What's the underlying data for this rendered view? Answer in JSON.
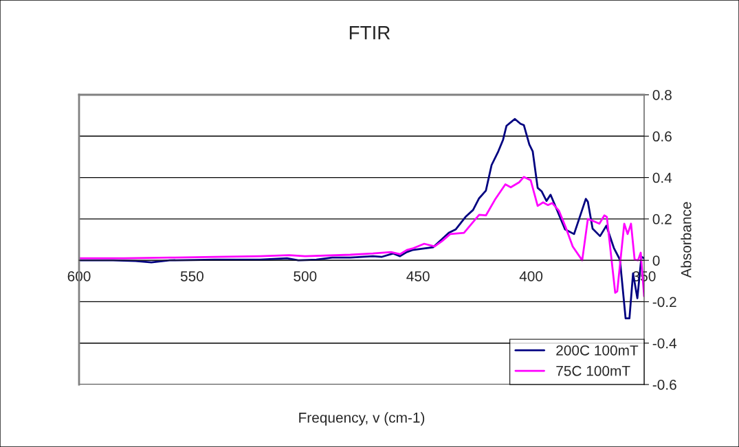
{
  "chart_data": {
    "type": "line",
    "title": "FTIR",
    "xlabel": "Frequency, v (cm-1)",
    "ylabel": "Absorbance",
    "xlim": [
      600,
      350
    ],
    "xticks": [
      600,
      550,
      500,
      450,
      400,
      350
    ],
    "ylim": [
      -0.6,
      0.8
    ],
    "yticks": [
      -0.6,
      -0.4,
      -0.2,
      0,
      0.2,
      0.4,
      0.6,
      0.8
    ],
    "grid": "y",
    "legend": "bottom right",
    "marker": "none",
    "line_style": "solid",
    "series": [
      {
        "name": "200C 100mT",
        "color": "#000080",
        "x": [
          600,
          585,
          575,
          568,
          560,
          540,
          520,
          508,
          503,
          495,
          488,
          480,
          470,
          466,
          461,
          458,
          455,
          452.5,
          443.4,
          436.4,
          433.3,
          429,
          425.7,
          423,
          420,
          417.5,
          414.5,
          412.4,
          410.9,
          409,
          407.2,
          404.7,
          403.2,
          400.8,
          399.3,
          397.1,
          395.3,
          393.2,
          391.4,
          389.2,
          385,
          381,
          375.8,
          374.9,
          372.8,
          369.5,
          366.7,
          363.4,
          360.7,
          358.2,
          356.5,
          354.9,
          353,
          351.2,
          350
        ],
        "values": [
          0.0,
          0.0,
          -0.003,
          -0.01,
          0.0,
          0.003,
          0.003,
          0.01,
          0.0,
          0.003,
          0.013,
          0.013,
          0.02,
          0.017,
          0.033,
          0.02,
          0.04,
          0.05,
          0.063,
          0.133,
          0.15,
          0.21,
          0.243,
          0.3,
          0.337,
          0.46,
          0.527,
          0.583,
          0.65,
          0.667,
          0.683,
          0.66,
          0.653,
          0.56,
          0.527,
          0.35,
          0.333,
          0.287,
          0.317,
          0.26,
          0.15,
          0.127,
          0.297,
          0.283,
          0.153,
          0.117,
          0.167,
          0.06,
          0.003,
          -0.28,
          -0.28,
          -0.063,
          -0.183,
          0.017,
          0.01
        ]
      },
      {
        "name": "75C 100mT",
        "color": "#ff00ff",
        "x": [
          600,
          580,
          560,
          540,
          520,
          507,
          500,
          480,
          470,
          462,
          458,
          455,
          452.5,
          447.3,
          442.7,
          439.4,
          435.8,
          429.7,
          423,
          420,
          416,
          411.4,
          409,
          405.3,
          403.2,
          400.2,
          397.1,
          394.7,
          392.6,
          390.7,
          387.7,
          384.7,
          381.6,
          377.4,
          374.9,
          371.9,
          369.8,
          367.6,
          366.5,
          362.8,
          361.9,
          358.8,
          357.3,
          355.8,
          354.2,
          352.7,
          351.5,
          350
        ],
        "values": [
          0.01,
          0.01,
          0.013,
          0.017,
          0.02,
          0.025,
          0.02,
          0.027,
          0.033,
          0.04,
          0.03,
          0.05,
          0.057,
          0.08,
          0.067,
          0.093,
          0.127,
          0.133,
          0.22,
          0.217,
          0.293,
          0.367,
          0.353,
          0.377,
          0.403,
          0.387,
          0.263,
          0.28,
          0.267,
          0.277,
          0.24,
          0.16,
          0.067,
          0.0,
          0.2,
          0.187,
          0.177,
          0.217,
          0.21,
          -0.157,
          -0.15,
          0.177,
          0.127,
          0.177,
          0.003,
          0.0,
          0.037,
          -0.173
        ]
      }
    ]
  }
}
